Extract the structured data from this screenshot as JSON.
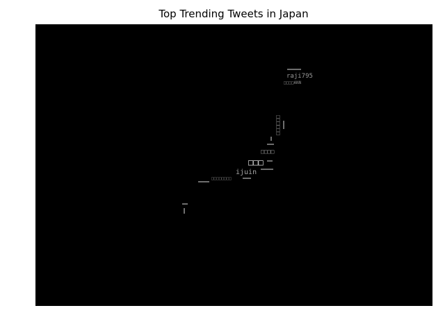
{
  "chart_data": {
    "type": "scatter",
    "title": "Top Trending Tweets in Japan",
    "xlabel": "",
    "ylabel": "",
    "background": "#000000",
    "grid": false,
    "axes_ticks": false,
    "text_color": "#8a8a8a",
    "highlight_color": "#d8d8d8",
    "words": [
      {
        "text": "raji795",
        "color": "#9a9a9a"
      },
      {
        "text": "□□□□ANN",
        "color": "#8a8a8a"
      },
      {
        "text": "□□□□□□",
        "color": "#8a8a8a"
      },
      {
        "text": "□□□□",
        "color": "#a0a0a0"
      },
      {
        "text": "□□□",
        "color": "#d8d8d8"
      },
      {
        "text": "ijuin",
        "color": "#a8a8a8"
      },
      {
        "text": "□□□□□□□□",
        "color": "#7a7a7a"
      }
    ]
  }
}
